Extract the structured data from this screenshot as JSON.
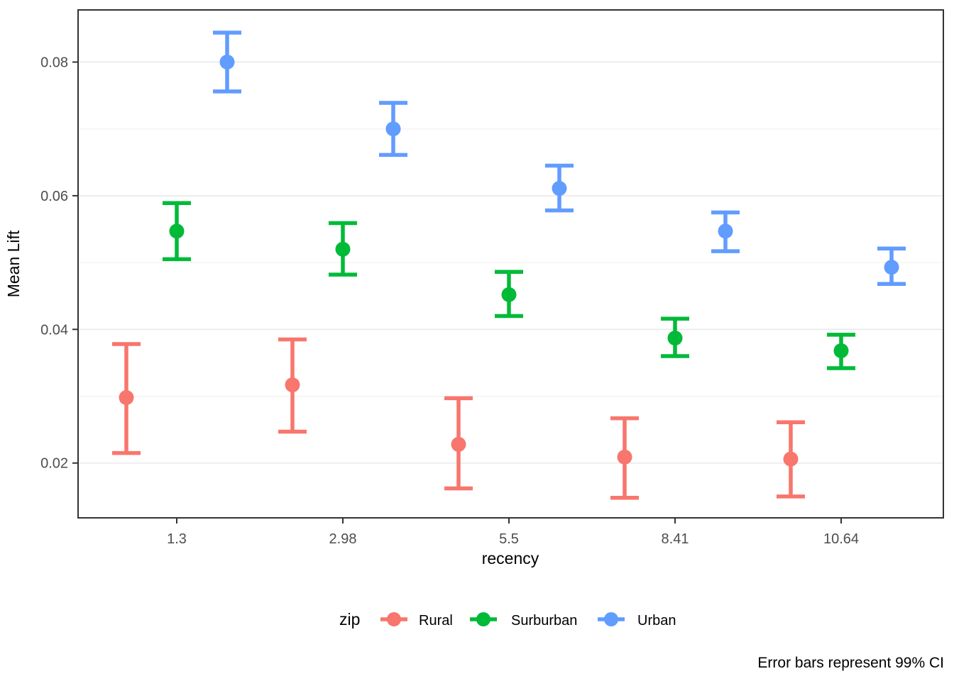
{
  "chart_data": {
    "type": "scatter",
    "subtype": "point-with-errorbar",
    "title": "",
    "xlabel": "recency",
    "ylabel": "Mean Lift",
    "caption": "Error bars represent 99% CI",
    "x_categories": [
      "1.3",
      "2.98",
      "5.5",
      "8.41",
      "10.64"
    ],
    "y_tick_labels": [
      "0.02",
      "0.04",
      "0.06",
      "0.08"
    ],
    "y_tick_values": [
      0.02,
      0.04,
      0.06,
      0.08
    ],
    "y_minor_gridlines": [
      0.03,
      0.05,
      0.07
    ],
    "ylim": [
      0.0118,
      0.0878
    ],
    "grid": true,
    "legend_position": "bottom",
    "legend_title": "zip",
    "error_bar_meaning": "99% CI",
    "series": [
      {
        "name": "Rural",
        "color": "#F8766D",
        "means": [
          0.0298,
          0.0317,
          0.0228,
          0.0209,
          0.0206
        ],
        "ci_low": [
          0.0215,
          0.0247,
          0.0162,
          0.0148,
          0.015
        ],
        "ci_high": [
          0.0378,
          0.0385,
          0.0297,
          0.0267,
          0.0261
        ]
      },
      {
        "name": "Surburban",
        "color": "#00BA38",
        "means": [
          0.0547,
          0.052,
          0.0452,
          0.0387,
          0.0368
        ],
        "ci_low": [
          0.0505,
          0.0482,
          0.042,
          0.036,
          0.0342
        ],
        "ci_high": [
          0.0589,
          0.0559,
          0.0486,
          0.0416,
          0.0392
        ]
      },
      {
        "name": "Urban",
        "color": "#619CFF",
        "means": [
          0.08,
          0.07,
          0.0611,
          0.0547,
          0.0493
        ],
        "ci_low": [
          0.0756,
          0.0661,
          0.0578,
          0.0517,
          0.0468
        ],
        "ci_high": [
          0.0844,
          0.0739,
          0.0645,
          0.0575,
          0.0521
        ]
      }
    ]
  },
  "colors": {
    "background": "#ffffff",
    "panel_border": "#333333",
    "grid_major": "#e9e9e9",
    "grid_minor": "#efefef",
    "tick_mark": "#333333",
    "axis_text": "#4d4d4d"
  }
}
